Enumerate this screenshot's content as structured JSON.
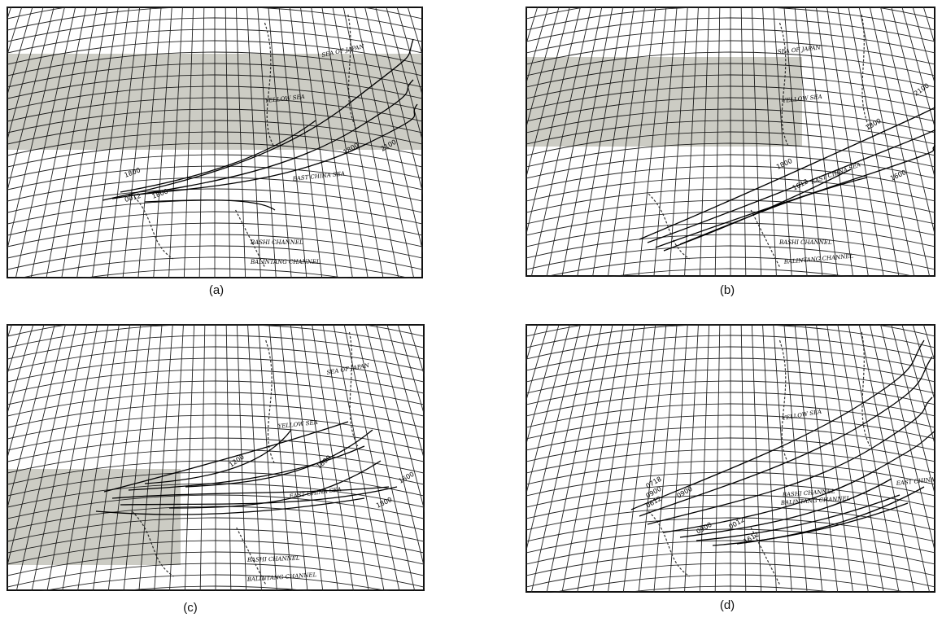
{
  "figure": {
    "panels": [
      {
        "caption": "(a)",
        "place_labels": [
          "SEA OF JAPAN",
          "YELLOW SEA",
          "EAST CHINA SEA",
          "BASHI CHANNEL",
          "BALINTANG CHANNEL"
        ],
        "track_labels": [
          "1800",
          "1800",
          "0012",
          "2100",
          "1800"
        ],
        "shaded_region": true,
        "track_count": 5
      },
      {
        "caption": "(b)",
        "place_labels": [
          "SEA OF JAPAN",
          "YELLOW SEA",
          "EAST CHINA SEA",
          "BASHI CHANNEL",
          "BALINTANG CHANNEL"
        ],
        "track_labels": [
          "1600",
          "1800",
          "1612",
          "1800",
          "2100"
        ],
        "shaded_region": true,
        "track_count": 5
      },
      {
        "caption": "(c)",
        "place_labels": [
          "SEA OF JAPAN",
          "YELLOW SEA",
          "EAST CHINA SEA",
          "BASHI CHANNEL",
          "BALINTANG CHANNEL"
        ],
        "track_labels": [
          "1200",
          "1800",
          "1600",
          "1800"
        ],
        "shaded_region": true,
        "track_count": 8
      },
      {
        "caption": "(d)",
        "place_labels": [
          "YELLOW SEA",
          "EAST CHINA SEA",
          "BASHI CHANNEL",
          "BALINTANG CHANNEL"
        ],
        "track_labels": [
          "0718",
          "0900",
          "0612",
          "0900",
          "0900",
          "0012",
          "1612"
        ],
        "shaded_region": false,
        "track_count": 8
      }
    ]
  }
}
